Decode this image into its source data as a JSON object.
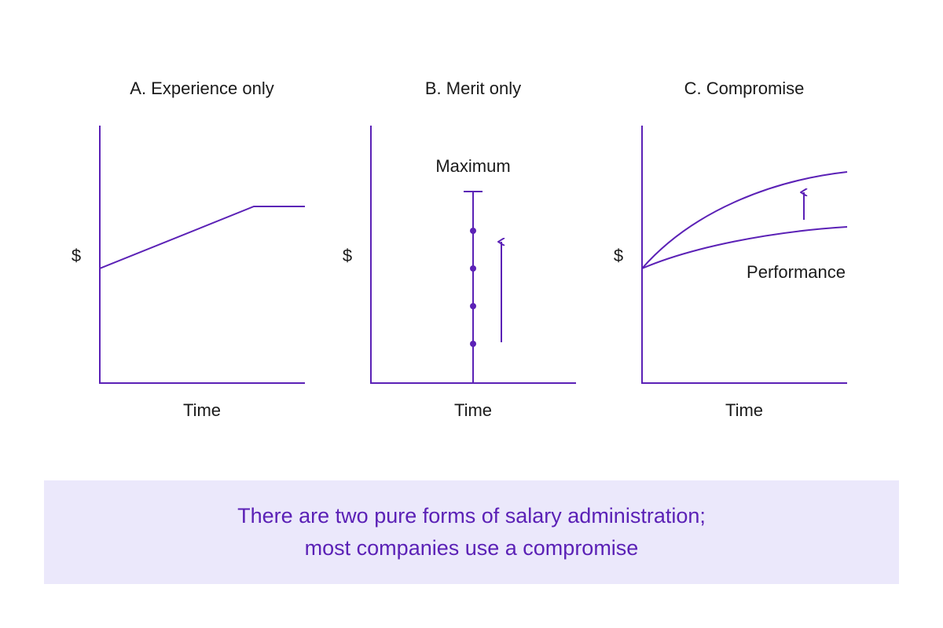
{
  "colors": {
    "line": "#5b21b6",
    "text": "#1a1a1a",
    "caption_bg": "#ebe8fb",
    "caption_text": "#5b21b6"
  },
  "panels": [
    {
      "title": "A. Experience only",
      "y_label": "$",
      "x_label": "Time"
    },
    {
      "title": "B. Merit only",
      "y_label": "$",
      "x_label": "Time",
      "top_label": "Maximum",
      "step_count": 4
    },
    {
      "title": "C. Compromise",
      "y_label": "$",
      "x_label": "Time",
      "curve_label": "Performance"
    }
  ],
  "caption": {
    "line1": "There are two pure forms of salary administration;",
    "line2": "most companies use a compromise"
  }
}
